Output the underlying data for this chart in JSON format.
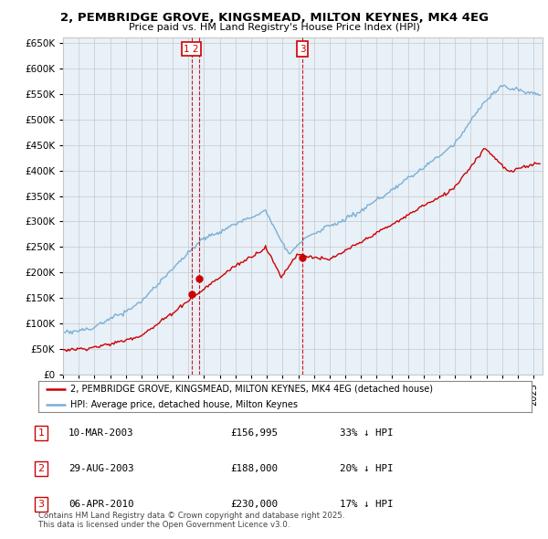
{
  "title": "2, PEMBRIDGE GROVE, KINGSMEAD, MILTON KEYNES, MK4 4EG",
  "subtitle": "Price paid vs. HM Land Registry's House Price Index (HPI)",
  "legend_line1": "2, PEMBRIDGE GROVE, KINGSMEAD, MILTON KEYNES, MK4 4EG (detached house)",
  "legend_line2": "HPI: Average price, detached house, Milton Keynes",
  "sale_dates": [
    "2003-03-10",
    "2003-08-29",
    "2010-04-06"
  ],
  "sale_prices": [
    156995,
    188000,
    230000
  ],
  "sale_labels_combined": [
    [
      "1",
      "2"
    ],
    [
      "3"
    ]
  ],
  "sale_label_dates": [
    "2003-08-29",
    "2010-04-06"
  ],
  "sale_labels_all": [
    "1",
    "2",
    "3"
  ],
  "vline_color": "#cc0000",
  "hpi_color": "#7bafd4",
  "price_color": "#cc0000",
  "chart_bg": "#e8f0f8",
  "table_rows": [
    [
      "1",
      "10-MAR-2003",
      "£156,995",
      "33% ↓ HPI"
    ],
    [
      "2",
      "29-AUG-2003",
      "£188,000",
      "20% ↓ HPI"
    ],
    [
      "3",
      "06-APR-2010",
      "£230,000",
      "17% ↓ HPI"
    ]
  ],
  "footer": "Contains HM Land Registry data © Crown copyright and database right 2025.\nThis data is licensed under the Open Government Licence v3.0.",
  "ylim": [
    0,
    660000
  ],
  "yticks": [
    0,
    50000,
    100000,
    150000,
    200000,
    250000,
    300000,
    350000,
    400000,
    450000,
    500000,
    550000,
    600000,
    650000
  ],
  "background_color": "#ffffff",
  "grid_color": "#c8c8c8"
}
